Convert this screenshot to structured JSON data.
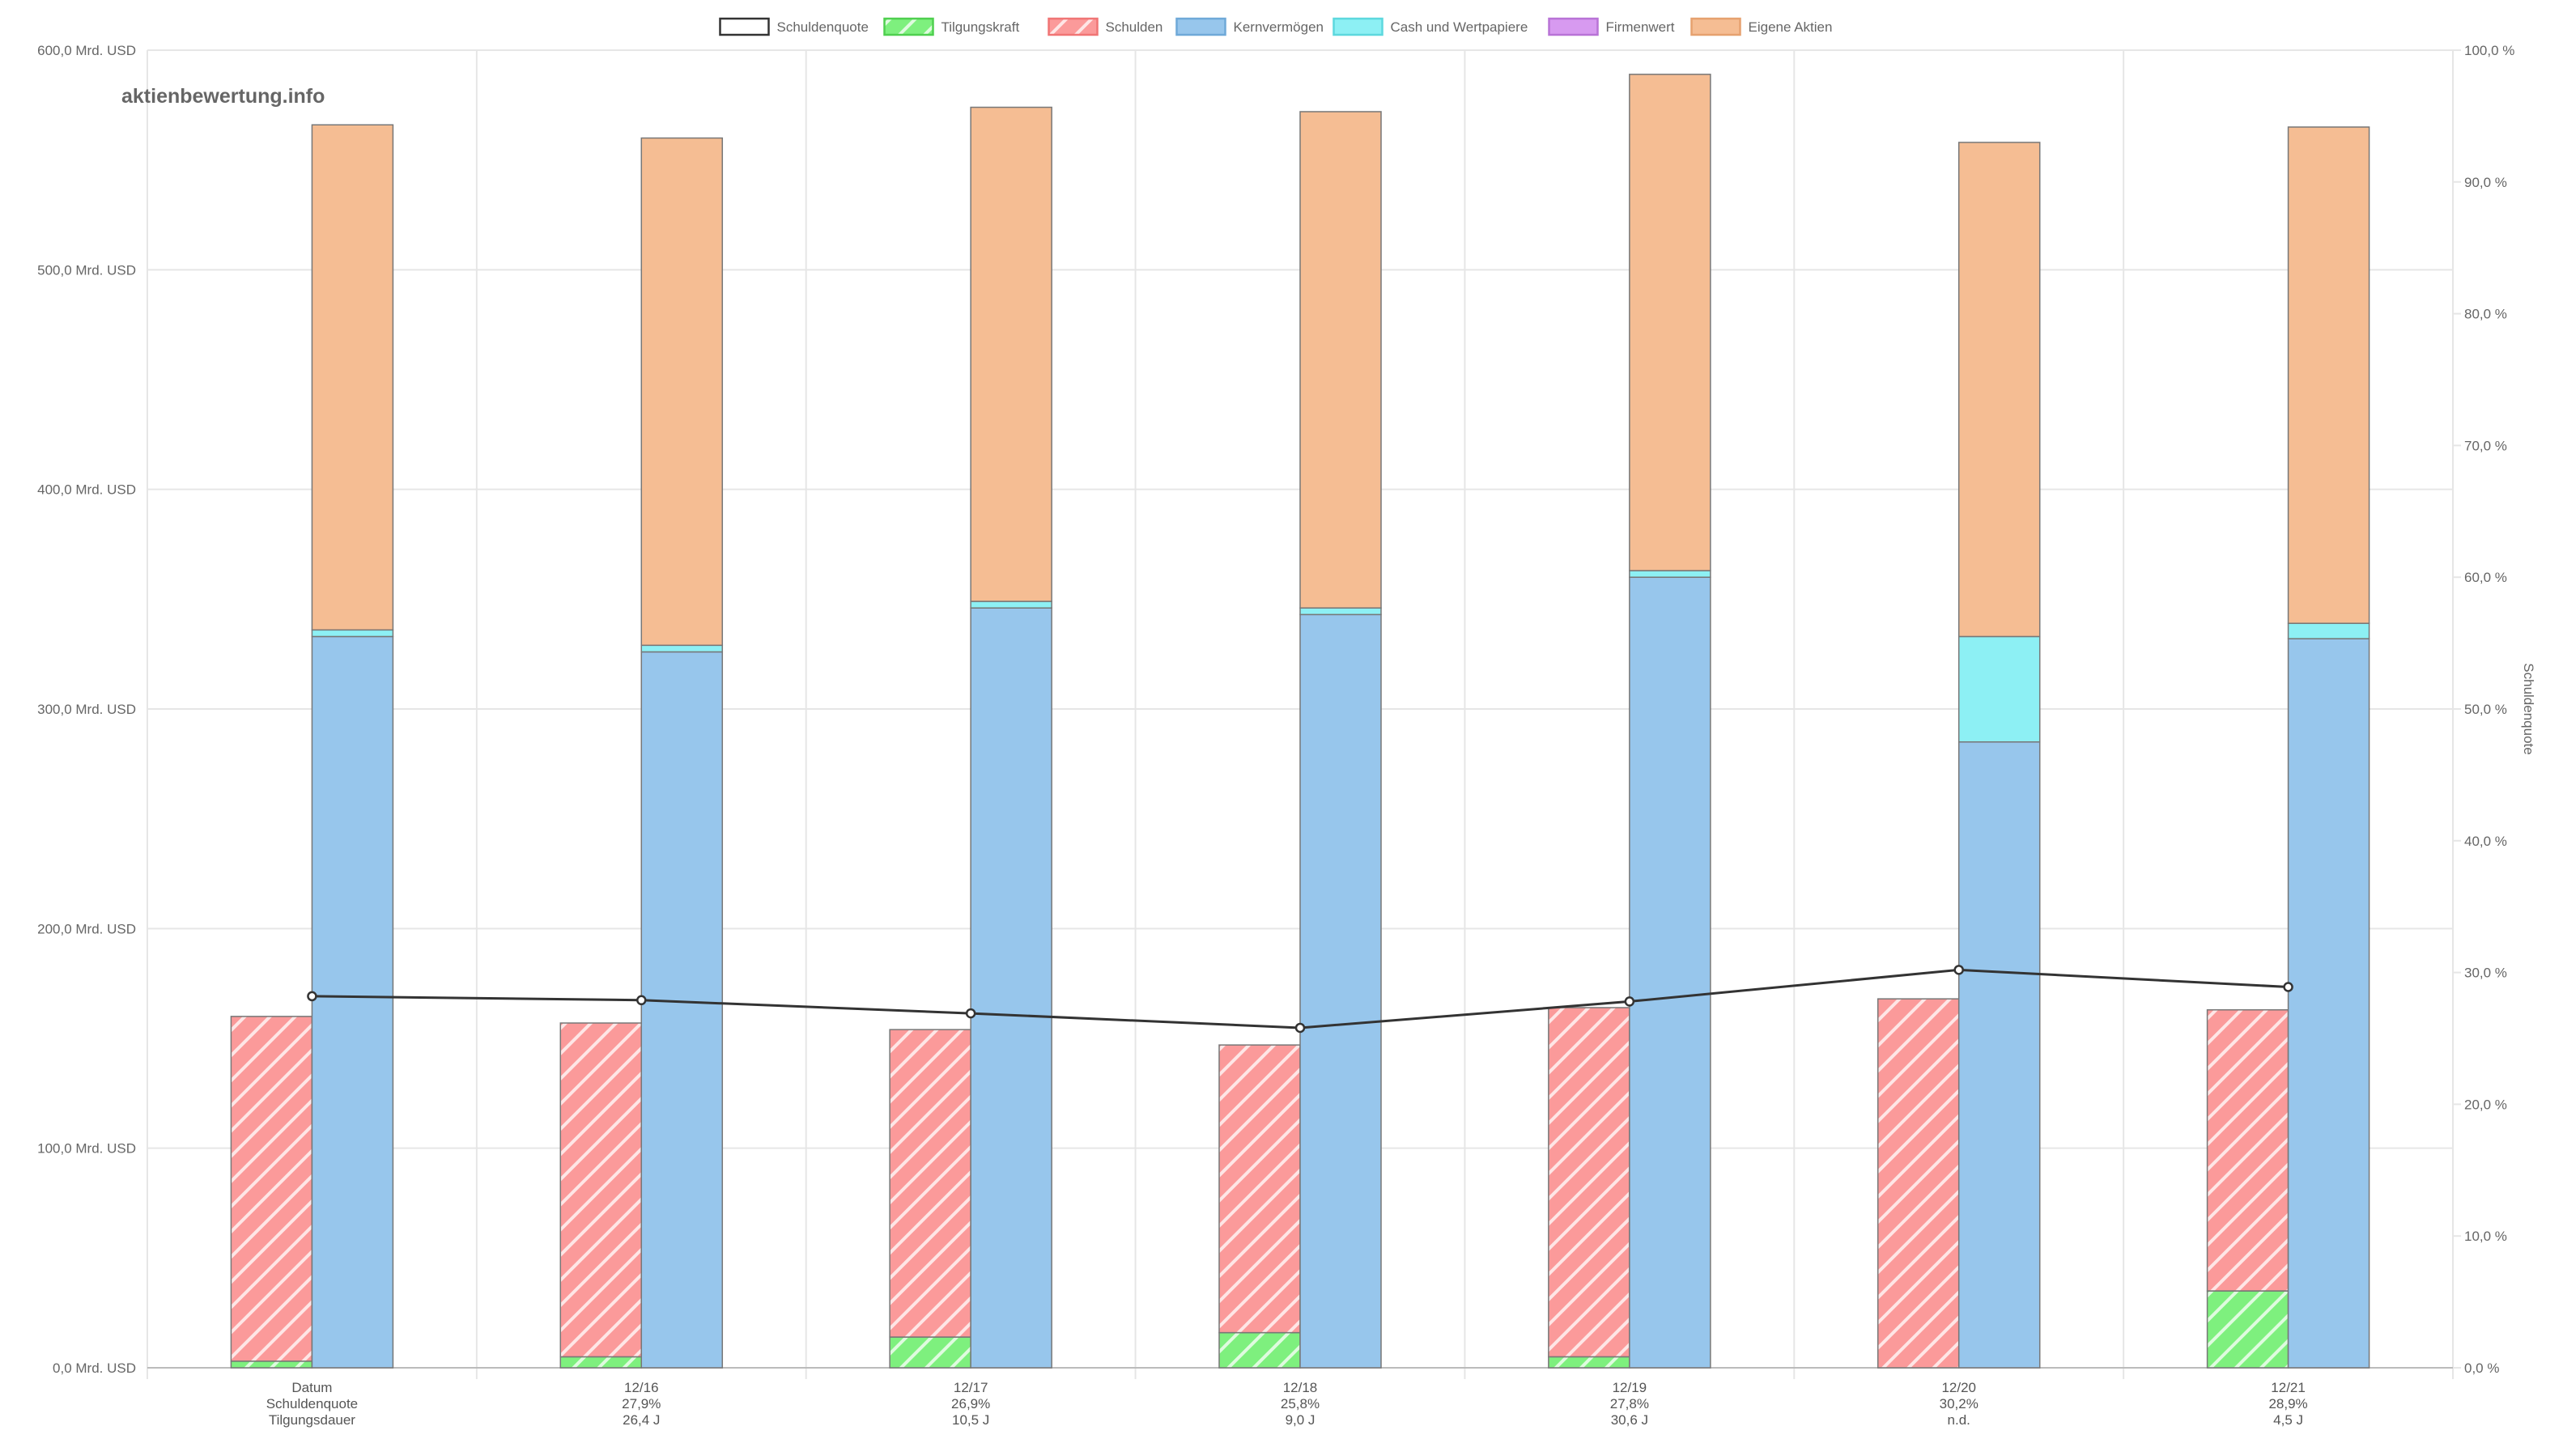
{
  "chart_data": {
    "type": "bar",
    "watermark": "aktienbewertung.info",
    "categories": [
      "Datum",
      "12/16",
      "12/17",
      "12/18",
      "12/19",
      "12/20",
      "12/21"
    ],
    "x_label_lines": [
      [
        "Datum",
        "Schuldenquote",
        "Tilgungsdauer"
      ],
      [
        "12/16",
        "27,9%",
        "26,4 J"
      ],
      [
        "12/17",
        "26,9%",
        "10,5 J"
      ],
      [
        "12/18",
        "25,8%",
        "9,0 J"
      ],
      [
        "12/19",
        "27,8%",
        "30,6 J"
      ],
      [
        "12/20",
        "30,2%",
        "n.d."
      ],
      [
        "12/21",
        "28,9%",
        "4,5 J"
      ]
    ],
    "legend": [
      {
        "name": "Schuldenquote",
        "color": "#ffffff",
        "border": "#333333",
        "pattern": "none"
      },
      {
        "name": "Tilgungskraft",
        "color": "#7ef07e",
        "border": "#4fcf4f",
        "pattern": "hatch"
      },
      {
        "name": "Schulden",
        "color": "#fb9a9a",
        "border": "#f07575",
        "pattern": "hatch"
      },
      {
        "name": "Kernvermögen",
        "color": "#97c6ec",
        "border": "#6fa9d8",
        "pattern": "none"
      },
      {
        "name": "Cash und Wertpapiere",
        "color": "#8df0f4",
        "border": "#5dd8de",
        "pattern": "none"
      },
      {
        "name": "Firmenwert",
        "color": "#d79af0",
        "border": "#b873d6",
        "pattern": "none"
      },
      {
        "name": "Eigene Aktien",
        "color": "#f5bd93",
        "border": "#e6a16f",
        "pattern": "none"
      }
    ],
    "left_stack": {
      "tilgungskraft": [
        3,
        5,
        14,
        16,
        5,
        0,
        35
      ],
      "schulden": [
        157,
        152,
        140,
        131,
        159,
        168,
        128
      ]
    },
    "right_stack": {
      "kernvermoegen": [
        333,
        326,
        346,
        343,
        360,
        285,
        332
      ],
      "cash_und_wertpapiere": [
        3,
        3,
        3,
        3,
        3,
        48,
        7
      ],
      "firmenwert": [
        0,
        0,
        0,
        0,
        0,
        0,
        0
      ],
      "eigene_aktien": [
        230,
        231,
        225,
        226,
        226,
        225,
        226
      ]
    },
    "schuldenquote": [
      28.2,
      27.9,
      26.9,
      25.8,
      27.8,
      30.2,
      28.9
    ],
    "y_left": {
      "min": 0,
      "max": 600,
      "step": 100,
      "ticks": [
        "0,0 Mrd. USD",
        "100,0 Mrd. USD",
        "200,0 Mrd. USD",
        "300,0 Mrd. USD",
        "400,0 Mrd. USD",
        "500,0 Mrd. USD",
        "600,0 Mrd. USD"
      ]
    },
    "y_right": {
      "label": "Schuldenquote",
      "min": 0,
      "max": 100,
      "step": 10,
      "ticks": [
        "0,0 %",
        "10,0 %",
        "20,0 %",
        "30,0 %",
        "40,0 %",
        "50,0 %",
        "60,0 %",
        "70,0 %",
        "80,0 %",
        "90,0 %",
        "100,0 %"
      ]
    },
    "grid": true,
    "legend_position": "top"
  }
}
